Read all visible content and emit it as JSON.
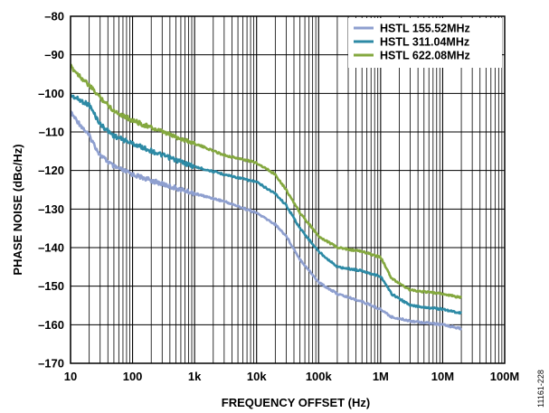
{
  "chart_data": {
    "type": "line",
    "xlabel": "FREQUENCY OFFSET (Hz)",
    "ylabel": "PHASE NOISE (dBc/Hz)",
    "xscale": "log",
    "xlim": [
      10,
      100000000
    ],
    "ylim": [
      -170,
      -80
    ],
    "grid": true,
    "legend_position": "top-right",
    "figure_id": "11161-228",
    "x_ticks": [
      {
        "value": 10,
        "label": "10"
      },
      {
        "value": 100,
        "label": "100"
      },
      {
        "value": 1000,
        "label": "1k"
      },
      {
        "value": 10000,
        "label": "10k"
      },
      {
        "value": 100000,
        "label": "100k"
      },
      {
        "value": 1000000,
        "label": "1M"
      },
      {
        "value": 10000000,
        "label": "10M"
      },
      {
        "value": 100000000,
        "label": "100M"
      }
    ],
    "y_ticks": [
      {
        "value": -80,
        "label": "–80"
      },
      {
        "value": -90,
        "label": "–90"
      },
      {
        "value": -100,
        "label": "–100"
      },
      {
        "value": -110,
        "label": "–110"
      },
      {
        "value": -120,
        "label": "–120"
      },
      {
        "value": -130,
        "label": "–130"
      },
      {
        "value": -140,
        "label": "–140"
      },
      {
        "value": -150,
        "label": "–150"
      },
      {
        "value": -160,
        "label": "–160"
      },
      {
        "value": -170,
        "label": "–170"
      }
    ],
    "series": [
      {
        "name": "HSTL 155.52MHz",
        "color": "#8e9fcf",
        "points": [
          [
            10,
            -105
          ],
          [
            20,
            -111
          ],
          [
            30,
            -116
          ],
          [
            50,
            -119
          ],
          [
            100,
            -121
          ],
          [
            300,
            -123.5
          ],
          [
            1000,
            -126
          ],
          [
            3000,
            -128
          ],
          [
            10000,
            -131
          ],
          [
            20000,
            -134
          ],
          [
            30000,
            -137
          ],
          [
            50000,
            -143
          ],
          [
            100000,
            -149
          ],
          [
            200000,
            -152
          ],
          [
            500000,
            -154
          ],
          [
            1000000,
            -156
          ],
          [
            1500000,
            -158
          ],
          [
            3000000,
            -159
          ],
          [
            10000000,
            -160
          ],
          [
            20000000,
            -161
          ]
        ]
      },
      {
        "name": "HSTL 311.04MHz",
        "color": "#2d8aa5",
        "points": [
          [
            10,
            -100.5
          ],
          [
            20,
            -103
          ],
          [
            30,
            -108
          ],
          [
            50,
            -111
          ],
          [
            100,
            -113
          ],
          [
            300,
            -116
          ],
          [
            1000,
            -119
          ],
          [
            3000,
            -121
          ],
          [
            10000,
            -123
          ],
          [
            20000,
            -126
          ],
          [
            30000,
            -129
          ],
          [
            50000,
            -135
          ],
          [
            100000,
            -141
          ],
          [
            200000,
            -145
          ],
          [
            500000,
            -146
          ],
          [
            1000000,
            -147.5
          ],
          [
            1500000,
            -152
          ],
          [
            3000000,
            -155
          ],
          [
            10000000,
            -156
          ],
          [
            20000000,
            -157
          ]
        ]
      },
      {
        "name": "HSTL 622.08MHz",
        "color": "#84a83f",
        "points": [
          [
            10,
            -93
          ],
          [
            20,
            -98
          ],
          [
            30,
            -101
          ],
          [
            50,
            -104.5
          ],
          [
            100,
            -107
          ],
          [
            300,
            -110
          ],
          [
            1000,
            -113
          ],
          [
            3000,
            -116
          ],
          [
            10000,
            -118
          ],
          [
            20000,
            -121
          ],
          [
            30000,
            -125
          ],
          [
            50000,
            -131
          ],
          [
            100000,
            -137
          ],
          [
            200000,
            -140
          ],
          [
            500000,
            -141
          ],
          [
            1000000,
            -142.5
          ],
          [
            1500000,
            -148
          ],
          [
            3000000,
            -151
          ],
          [
            10000000,
            -152
          ],
          [
            20000000,
            -153
          ]
        ]
      }
    ]
  }
}
